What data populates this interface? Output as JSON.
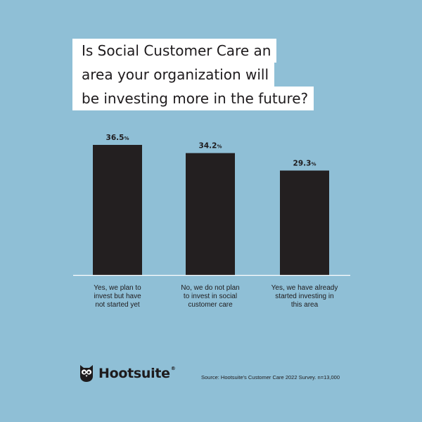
{
  "title_lines": [
    "Is Social Customer Care an",
    "area your organization will",
    "be investing more in the future?"
  ],
  "chart_data": {
    "type": "bar",
    "title": "Is Social Customer Care an area your organization will be investing more in the future?",
    "categories": [
      [
        "Yes, we plan to",
        "invest but have",
        "not started yet"
      ],
      [
        "No, we do not plan",
        "to invest in social",
        "customer care"
      ],
      [
        "Yes, we have already",
        "started investing in",
        "this area"
      ]
    ],
    "values": [
      36.5,
      34.2,
      29.3
    ],
    "value_labels": [
      "36.5",
      "34.2",
      "29.3"
    ],
    "value_suffix": "%",
    "ylim": [
      0,
      36.5
    ],
    "grid": false,
    "bar_color": "#231f20"
  },
  "brand": {
    "name": "Hootsuite",
    "reg_mark": "®",
    "logo_icon": "owl-icon"
  },
  "source": "Source: Hootsuite's Customer Care 2022 Survey. n=13,000",
  "colors": {
    "background": "#8fbfd6",
    "title_box": "#ffffff",
    "ink": "#1e1b1d"
  }
}
